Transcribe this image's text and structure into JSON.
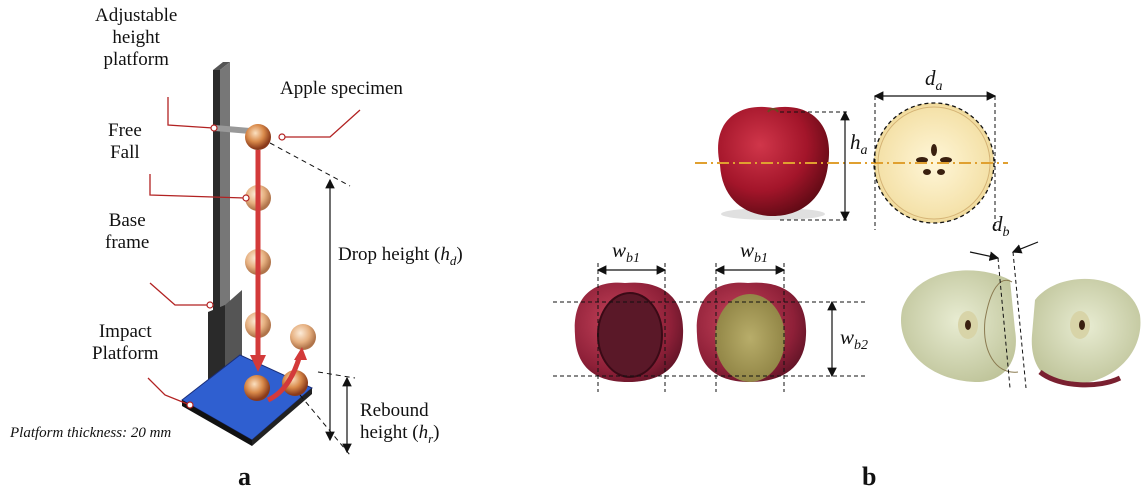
{
  "panel_a": {
    "label": "a",
    "adjustable_platform": [
      "Adjustable",
      "height",
      "platform"
    ],
    "apple_specimen": "Apple specimen",
    "free_fall": [
      "Free",
      "Fall"
    ],
    "base_frame": [
      "Base",
      "frame"
    ],
    "impact_platform": [
      "Impact",
      "Platform"
    ],
    "drop_height": {
      "text": "Drop height (",
      "var": "h",
      "sub": "d",
      "close": ")"
    },
    "rebound_height": {
      "line1": "Rebound",
      "text": "height (",
      "var": "h",
      "sub": "r",
      "close": ")"
    },
    "platform_note": "Platform thickness: 20 mm"
  },
  "panel_b": {
    "label": "b",
    "d_a": {
      "var": "d",
      "sub": "a"
    },
    "h_a": {
      "var": "h",
      "sub": "a"
    },
    "d_b": {
      "var": "d",
      "sub": "b"
    },
    "w_b1_left": {
      "var": "w",
      "sub": "b1"
    },
    "w_b1_right": {
      "var": "w",
      "sub": "b1"
    },
    "w_b2": {
      "var": "w",
      "sub": "b2"
    }
  },
  "colors": {
    "arrow_red": "#d33a3a",
    "platform_blue": "#2f5fd0",
    "leader_red": "#b22222",
    "axis_orange": "#e0a030",
    "apple_red": "#a8182a"
  }
}
